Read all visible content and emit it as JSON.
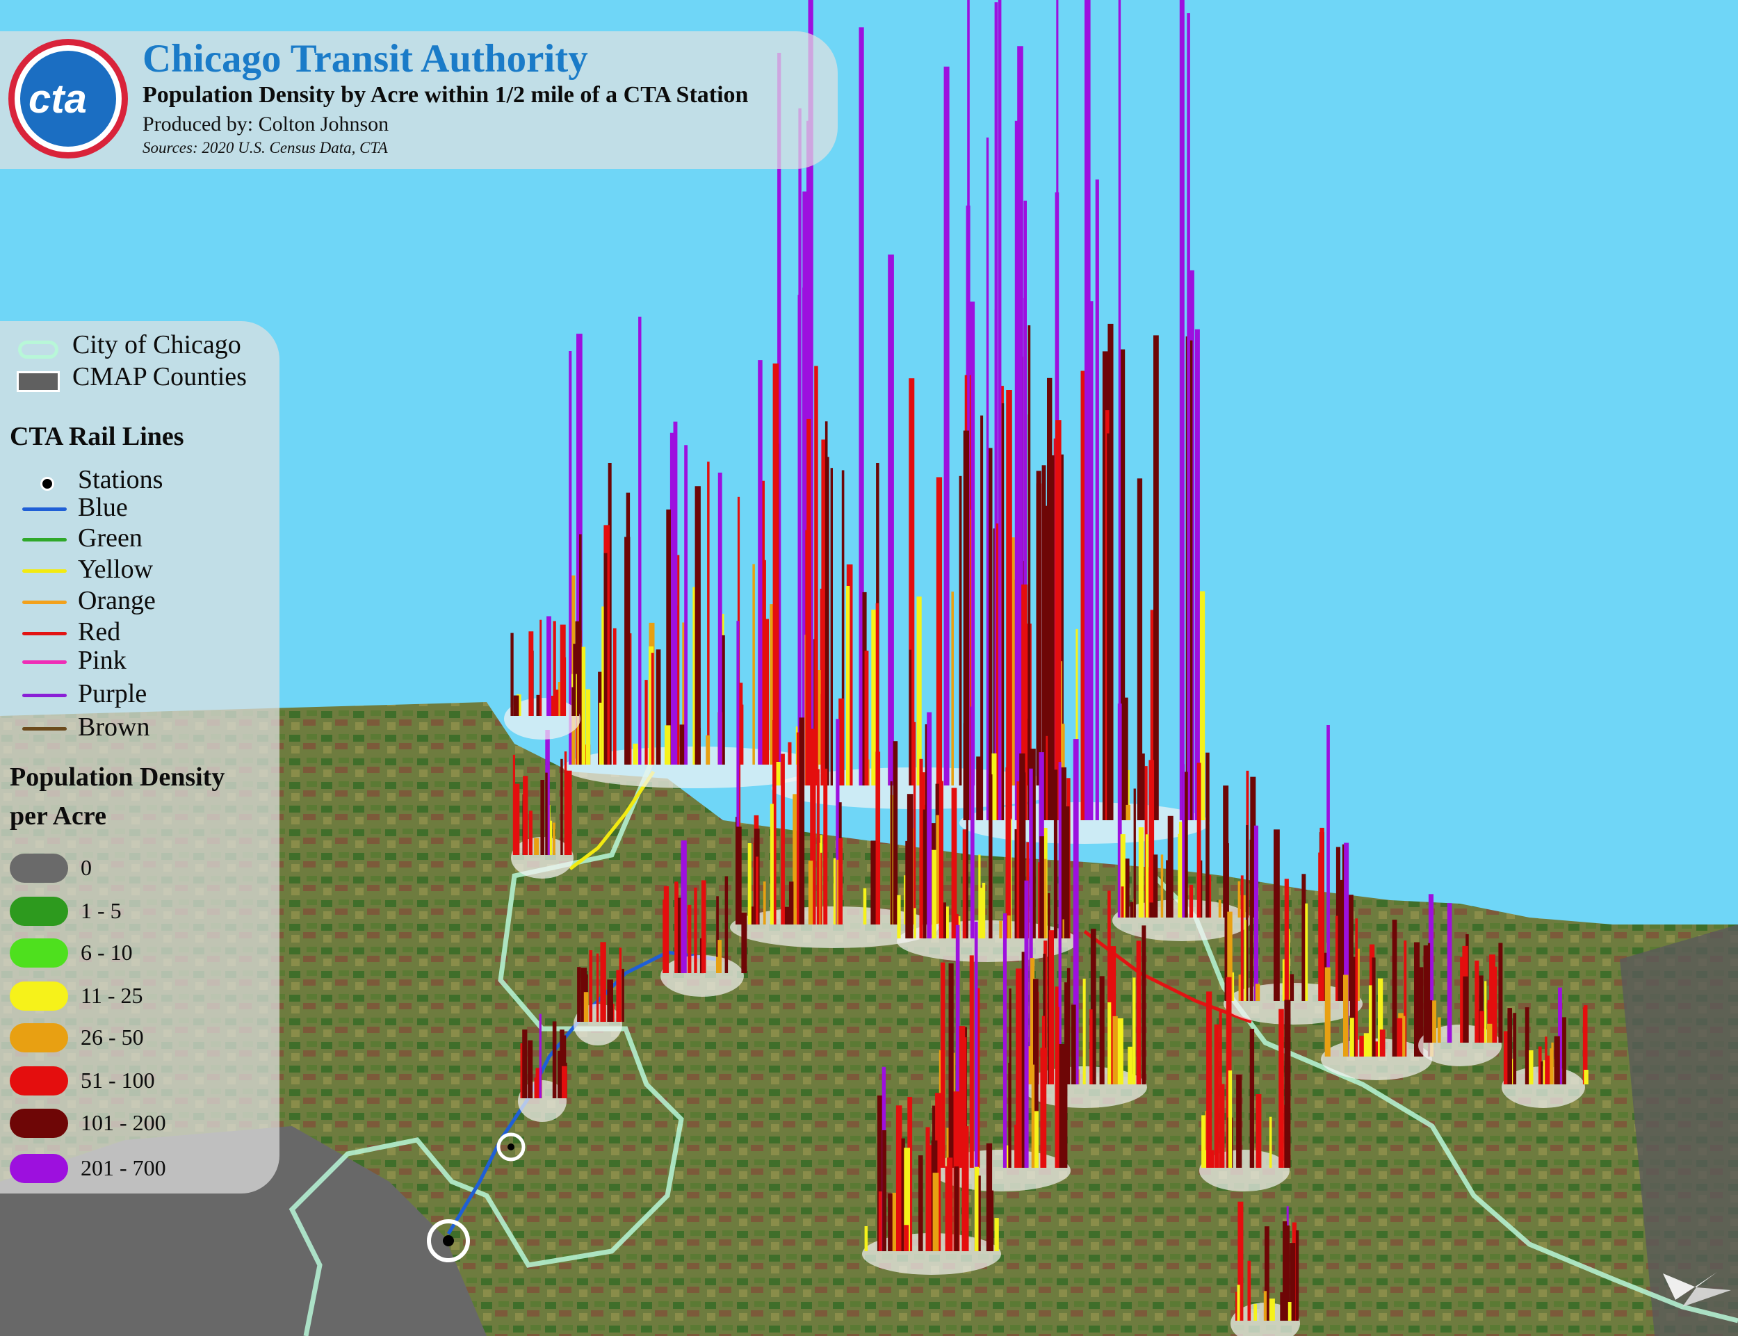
{
  "header": {
    "logo_text": "cta",
    "title": "Chicago Transit Authority",
    "subtitle": "Population Density by Acre within 1/2 mile of a CTA Station",
    "author": "Produced by: Colton Johnson",
    "sources": "Sources: 2020 U.S. Census Data, CTA"
  },
  "legend": {
    "boundaries": [
      {
        "label": "City of Chicago",
        "color": "#b8f7d8"
      },
      {
        "label": "CMAP Counties",
        "color": "#606060"
      }
    ],
    "rail_title": "CTA Rail Lines",
    "stations_label": "Stations",
    "rail_lines": [
      {
        "label": "Blue",
        "color": "#1f5fd6"
      },
      {
        "label": "Green",
        "color": "#2fa82a"
      },
      {
        "label": "Yellow",
        "color": "#f2ea11"
      },
      {
        "label": "Orange",
        "color": "#f2a11c"
      },
      {
        "label": "Red",
        "color": "#e21313"
      },
      {
        "label": "Pink",
        "color": "#ee2db6"
      },
      {
        "label": "Purple",
        "color": "#8a1fd6"
      },
      {
        "label": "Brown",
        "color": "#6b4a1c"
      }
    ],
    "density_title_line1": "Population Density",
    "density_title_line2": "per Acre",
    "density_classes": [
      {
        "label": "0",
        "color": "#6a6a6a"
      },
      {
        "label": "1 - 5",
        "color": "#2d9a1e"
      },
      {
        "label": "6 - 10",
        "color": "#4ee01e"
      },
      {
        "label": "11 - 25",
        "color": "#f6f21a"
      },
      {
        "label": "26 - 50",
        "color": "#e8a012"
      },
      {
        "label": "51 - 100",
        "color": "#e40e0e"
      },
      {
        "label": "101 - 200",
        "color": "#6e0606"
      },
      {
        "label": "201 - 700",
        "color": "#9d10de"
      }
    ]
  },
  "map_colors": {
    "lake": "#6fd6f7",
    "land": "#6b7a3e",
    "county": "#686868",
    "city_boundary": "#b8f7d8"
  }
}
